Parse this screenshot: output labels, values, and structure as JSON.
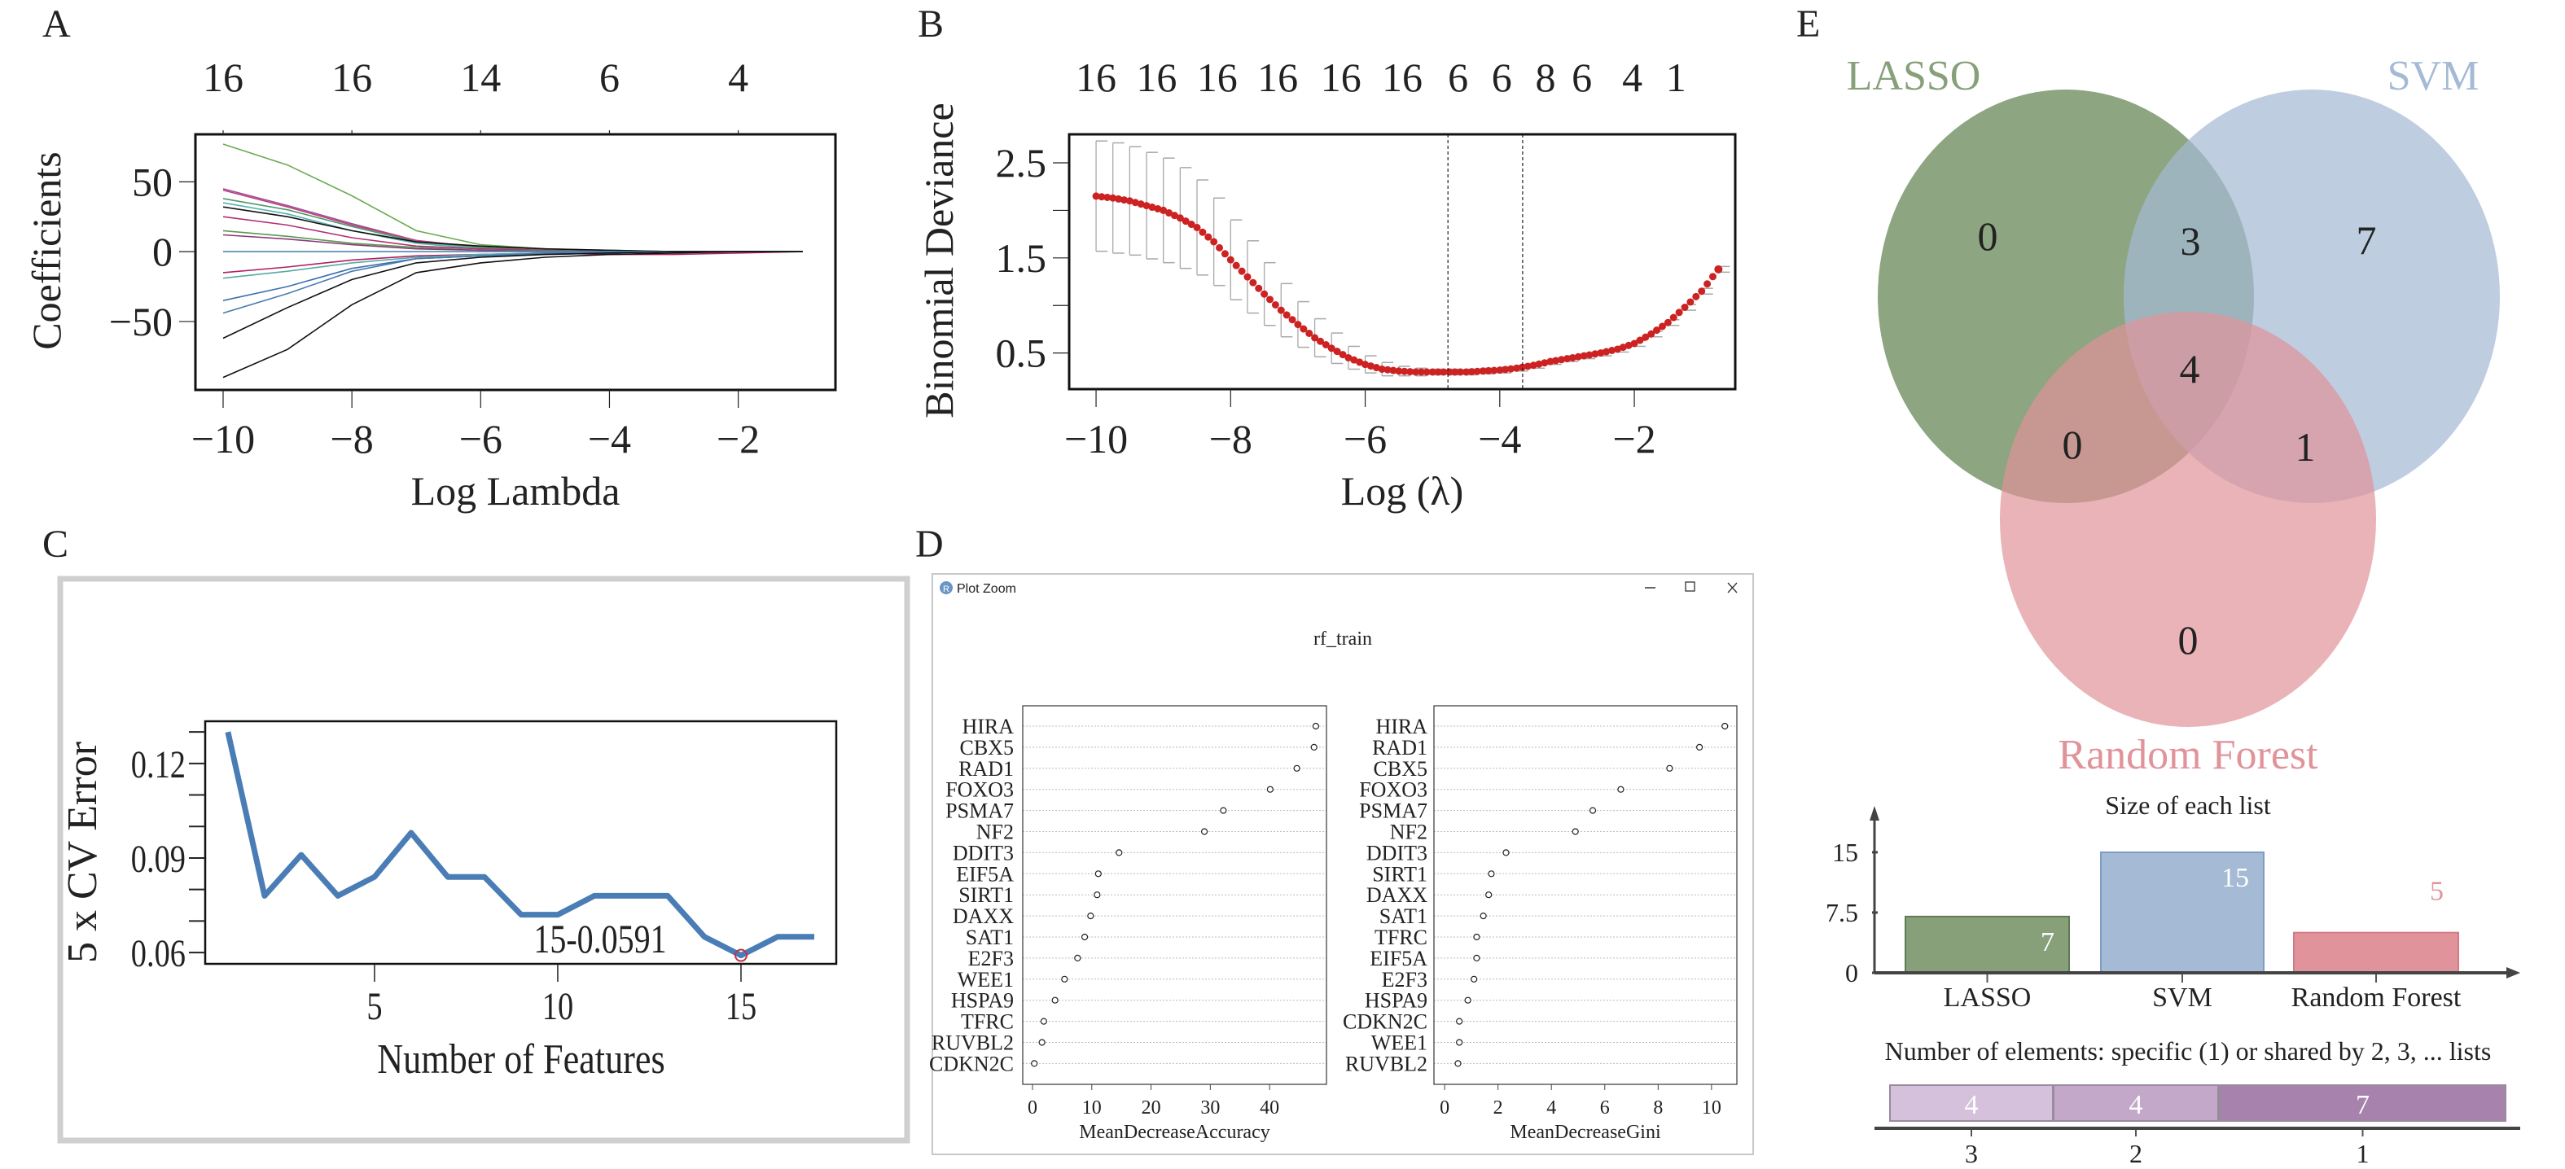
{
  "panel_labels": {
    "a": "A",
    "b": "B",
    "c": "C",
    "d": "D",
    "e": "E"
  },
  "plot_window": {
    "title": "Plot Zoom",
    "app_icon": "R",
    "minimize_icon": "minimize-icon",
    "maximize_icon": "maximize-icon",
    "close_icon": "close-icon"
  },
  "colors": {
    "lasso": "#87a07a",
    "svm": "#a5bad4",
    "rf": "#e0939a",
    "cv_line": "#4a7db5",
    "deviance": "#cc2222",
    "errorbar": "#a8a8a8"
  },
  "chart_data": [
    {
      "id": "A",
      "type": "line",
      "xlabel": "Log Lambda",
      "ylabel": "Coefficients",
      "xlim": [
        -10.43,
        -0.49
      ],
      "ylim": [
        -99,
        84
      ],
      "xticks": [
        -10,
        -8,
        -6,
        -4,
        -2
      ],
      "xtick_labels": [
        "−10",
        "−8",
        "−6",
        "−4",
        "−2"
      ],
      "yticks": [
        -50,
        0,
        50
      ],
      "ytick_labels": [
        "−50",
        "0",
        "50"
      ],
      "top_axis_labels": [
        "16",
        "16",
        "14",
        "6",
        "4"
      ],
      "x": [
        -10,
        -9,
        -8,
        -7,
        -6,
        -5,
        -4,
        -3,
        -2,
        -1
      ],
      "series": [
        {
          "color": "#6aaa50",
          "values": [
            77,
            62,
            40,
            15,
            5,
            2,
            1,
            0,
            0,
            0
          ]
        },
        {
          "color": "#9b4f96",
          "values": [
            45,
            33,
            20,
            8,
            3,
            1,
            0.5,
            0,
            0,
            0
          ]
        },
        {
          "color": "#c04080",
          "values": [
            44,
            32,
            19,
            8,
            3,
            1,
            0,
            0,
            0,
            0
          ]
        },
        {
          "color": "#4a9a6a",
          "values": [
            38,
            30,
            18,
            7,
            3,
            1,
            0.5,
            0,
            0,
            0
          ]
        },
        {
          "color": "#5ab0b0",
          "values": [
            35,
            27,
            15,
            6,
            2,
            1,
            0,
            0,
            0,
            0
          ]
        },
        {
          "color": "#111111",
          "values": [
            32,
            25,
            15,
            7,
            4,
            2,
            1,
            0,
            0,
            0
          ]
        },
        {
          "color": "#b03070",
          "values": [
            25,
            19,
            10,
            4,
            2,
            1,
            0,
            0,
            0,
            0
          ]
        },
        {
          "color": "#5a9a50",
          "values": [
            15,
            11,
            6,
            3,
            1,
            0.5,
            0,
            0,
            0,
            0
          ]
        },
        {
          "color": "#8a3a7a",
          "values": [
            12,
            9,
            5,
            2,
            1,
            0,
            0,
            0,
            0,
            0
          ]
        },
        {
          "color": "#4a8ab0",
          "values": [
            0,
            0,
            0,
            0,
            0,
            0,
            0,
            0,
            0,
            0
          ]
        },
        {
          "color": "#b02060",
          "values": [
            -15,
            -11,
            -6,
            -3,
            -2,
            -1,
            -2,
            -2,
            -1,
            0
          ]
        },
        {
          "color": "#5aa8a8",
          "values": [
            -19,
            -14,
            -8,
            -4,
            -2,
            -1,
            0,
            0,
            0,
            0
          ]
        },
        {
          "color": "#3a70b0",
          "values": [
            -35,
            -25,
            -12,
            -5,
            -3,
            -2,
            -1,
            0,
            0,
            0
          ]
        },
        {
          "color": "#4a7ab0",
          "values": [
            -44,
            -30,
            -14,
            -5,
            -3,
            -1,
            0,
            0,
            0,
            0
          ]
        },
        {
          "color": "#111111",
          "values": [
            -62,
            -40,
            -20,
            -8,
            -4,
            -2,
            -1,
            0,
            0,
            0
          ]
        },
        {
          "color": "#111111",
          "values": [
            -90,
            -70,
            -38,
            -15,
            -8,
            -4,
            -2,
            -1,
            0,
            0
          ]
        }
      ]
    },
    {
      "id": "B",
      "type": "scatter",
      "xlabel": "Log (λ)",
      "ylabel": "Binomial Deviance",
      "xlim": [
        -10.4,
        -0.5
      ],
      "ylim": [
        0.12,
        2.8
      ],
      "xticks": [
        -10,
        -8,
        -6,
        -4,
        -2
      ],
      "xtick_labels": [
        "−10",
        "−8",
        "−6",
        "−4",
        "−2"
      ],
      "yticks": [
        0.5,
        1.0,
        1.5,
        2.0,
        2.5
      ],
      "ytick_labels": [
        "0.5",
        "",
        "1.5",
        "",
        "2.5"
      ],
      "top_axis_labels": [
        "16",
        "16",
        "16",
        "16",
        "16",
        "16",
        "6",
        "6",
        "8",
        "6",
        "4",
        "1"
      ],
      "top_axis_positions": [
        -10,
        -9.1,
        -8.2,
        -7.3,
        -6.36,
        -5.45,
        -4.62,
        -3.97,
        -3.32,
        -2.78,
        -2.03,
        -1.38
      ],
      "vlines": [
        -4.77,
        -3.66
      ],
      "x": [
        -10,
        -9.75,
        -9.5,
        -9.25,
        -9,
        -8.75,
        -8.5,
        -8.25,
        -8,
        -7.75,
        -7.5,
        -7.25,
        -7,
        -6.75,
        -6.5,
        -6.25,
        -6,
        -5.75,
        -5.5,
        -5.25,
        -5,
        -4.75,
        -4.5,
        -4.25,
        -4,
        -3.75,
        -3.5,
        -3.25,
        -3,
        -2.75,
        -2.5,
        -2.25,
        -2,
        -1.75,
        -1.5,
        -1.25,
        -1,
        -0.75
      ],
      "mean": [
        2.15,
        2.13,
        2.1,
        2.05,
        2.0,
        1.92,
        1.82,
        1.67,
        1.48,
        1.3,
        1.12,
        0.95,
        0.8,
        0.66,
        0.55,
        0.45,
        0.38,
        0.33,
        0.31,
        0.3,
        0.3,
        0.3,
        0.3,
        0.31,
        0.32,
        0.34,
        0.37,
        0.41,
        0.44,
        0.47,
        0.5,
        0.54,
        0.6,
        0.7,
        0.82,
        0.98,
        1.15,
        1.38
      ],
      "se": [
        0.58,
        0.58,
        0.57,
        0.56,
        0.55,
        0.53,
        0.5,
        0.46,
        0.42,
        0.38,
        0.33,
        0.28,
        0.24,
        0.2,
        0.16,
        0.12,
        0.09,
        0.07,
        0.05,
        0.04,
        0.03,
        0.03,
        0.03,
        0.03,
        0.03,
        0.03,
        0.03,
        0.03,
        0.03,
        0.03,
        0.03,
        0.03,
        0.03,
        0.03,
        0.03,
        0.03,
        0.03,
        0.03
      ]
    },
    {
      "id": "C",
      "type": "line",
      "xlabel": "Number of Features",
      "ylabel": "5 x CV Error",
      "xlim": [
        0.38,
        17.6
      ],
      "ylim": [
        0.0564,
        0.1334
      ],
      "xticks": [
        5,
        10,
        15
      ],
      "xtick_labels": [
        "5",
        "10",
        "15"
      ],
      "yticks": [
        0.06,
        0.07,
        0.08,
        0.09,
        0.1,
        0.11,
        0.12,
        0.13
      ],
      "ytick_labels": [
        "0.06",
        "",
        "",
        "0.09",
        "",
        "",
        "0.12",
        ""
      ],
      "x": [
        1,
        2,
        3,
        4,
        5,
        6,
        7,
        8,
        9,
        10,
        11,
        12,
        13,
        14,
        15,
        16,
        17
      ],
      "values": [
        0.13,
        0.078,
        0.091,
        0.078,
        0.084,
        0.098,
        0.084,
        0.084,
        0.072,
        0.072,
        0.078,
        0.078,
        0.078,
        0.065,
        0.0591,
        0.065,
        0.065
      ],
      "highlight": {
        "x": 15,
        "y": 0.0591,
        "label": "15-0.0591"
      }
    },
    {
      "id": "D",
      "type": "scatter",
      "title": "rf_train",
      "panels": [
        {
          "xlabel": "MeanDecreaseAccuracy",
          "xlim": [
            -1.65,
            49.6
          ],
          "xticks": [
            0,
            10,
            20,
            30,
            40
          ],
          "xtick_labels": [
            "0",
            "10",
            "20",
            "30",
            "40"
          ],
          "categories": [
            "HIRA",
            "CBX5",
            "RAD1",
            "FOXO3",
            "PSMA7",
            "NF2",
            "DDIT3",
            "EIF5A",
            "SIRT1",
            "DAXX",
            "SAT1",
            "E2F3",
            "WEE1",
            "HSPA9",
            "TFRC",
            "RUVBL2",
            "CDKN2C"
          ],
          "values": [
            47.8,
            47.5,
            44.6,
            40.1,
            32.2,
            29.0,
            14.6,
            11.1,
            10.9,
            9.8,
            8.8,
            7.6,
            5.4,
            3.8,
            1.9,
            1.6,
            0.3
          ]
        },
        {
          "xlabel": "MeanDecreaseGini",
          "xlim": [
            -0.4,
            10.95
          ],
          "xticks": [
            0,
            2,
            4,
            6,
            8,
            10
          ],
          "xtick_labels": [
            "0",
            "2",
            "4",
            "6",
            "8",
            "10"
          ],
          "categories": [
            "HIRA",
            "RAD1",
            "CBX5",
            "FOXO3",
            "PSMA7",
            "NF2",
            "DDIT3",
            "SIRT1",
            "DAXX",
            "SAT1",
            "TFRC",
            "EIF5A",
            "E2F3",
            "HSPA9",
            "CDKN2C",
            "WEE1",
            "RUVBL2"
          ],
          "values": [
            10.5,
            9.55,
            8.43,
            6.6,
            5.55,
            4.9,
            2.3,
            1.75,
            1.65,
            1.45,
            1.2,
            1.2,
            1.1,
            0.87,
            0.55,
            0.55,
            0.5
          ]
        }
      ]
    },
    {
      "id": "E-venn",
      "type": "venn",
      "sets": [
        "LASSO",
        "SVM",
        "Random Forest"
      ],
      "regions": {
        "lasso_only": "0",
        "lasso_svm": "3",
        "svm_only": "7",
        "all": "4",
        "lasso_rf": "0",
        "svm_rf": "1",
        "rf_only": "0"
      }
    },
    {
      "id": "E-size",
      "type": "bar",
      "title": "Size of each list",
      "categories": [
        "LASSO",
        "SVM",
        "Random Forest"
      ],
      "values": [
        7,
        15,
        5
      ],
      "value_labels": [
        "7",
        "15",
        "5"
      ],
      "yticks": [
        0,
        7.5,
        15
      ],
      "ytick_labels": [
        "0",
        "7.5",
        "15"
      ],
      "ylim": [
        0,
        20
      ]
    },
    {
      "id": "E-shared",
      "type": "bar",
      "title": "Number of elements: specific (1) or shared by 2, 3, ... lists",
      "categories": [
        "3",
        "2",
        "1"
      ],
      "values": [
        4,
        4,
        7
      ],
      "value_labels": [
        "4",
        "4",
        "7"
      ],
      "colors": [
        "#d5c1dc",
        "#c4a8ca",
        "#a682ad"
      ]
    }
  ]
}
